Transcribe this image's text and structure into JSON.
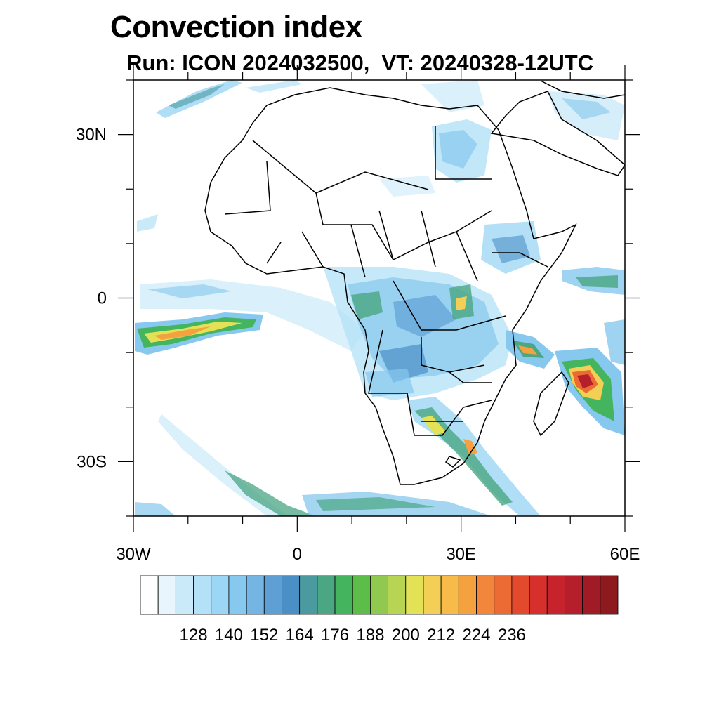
{
  "title": "Convection index",
  "subtitle": "Run: ICON 2024032500,  VT: 20240328-12UTC",
  "map": {
    "lon_range": [
      -30,
      60
    ],
    "lat_range": [
      -40,
      40
    ],
    "lat_labels": [
      {
        "lat": 30,
        "label": "30N"
      },
      {
        "lat": 0,
        "label": "0"
      },
      {
        "lat": -30,
        "label": "30S"
      }
    ],
    "lon_labels": [
      {
        "lon": -30,
        "label": "30W"
      },
      {
        "lon": 0,
        "label": "0"
      },
      {
        "lon": 30,
        "label": "30E"
      },
      {
        "lon": 60,
        "label": "60E"
      }
    ]
  },
  "colorbar": {
    "colors": [
      "#ffffff",
      "#e8f5fc",
      "#cbeaf9",
      "#b3e1f7",
      "#9bd6f4",
      "#86c8ee",
      "#74b5e4",
      "#5e9fd6",
      "#4a8fc6",
      "#4a9aa0",
      "#4aa683",
      "#45b45f",
      "#5cbd48",
      "#8fc94f",
      "#b7d552",
      "#e3e257",
      "#f3d055",
      "#f8bb4a",
      "#f6a140",
      "#f2863a",
      "#ec6a34",
      "#e2492d",
      "#d72f2c",
      "#c6232c",
      "#b51f2b",
      "#a11b26",
      "#8c1a1e"
    ],
    "labels": [
      "128",
      "140",
      "152",
      "164",
      "176",
      "188",
      "200",
      "212",
      "224",
      "236"
    ]
  }
}
